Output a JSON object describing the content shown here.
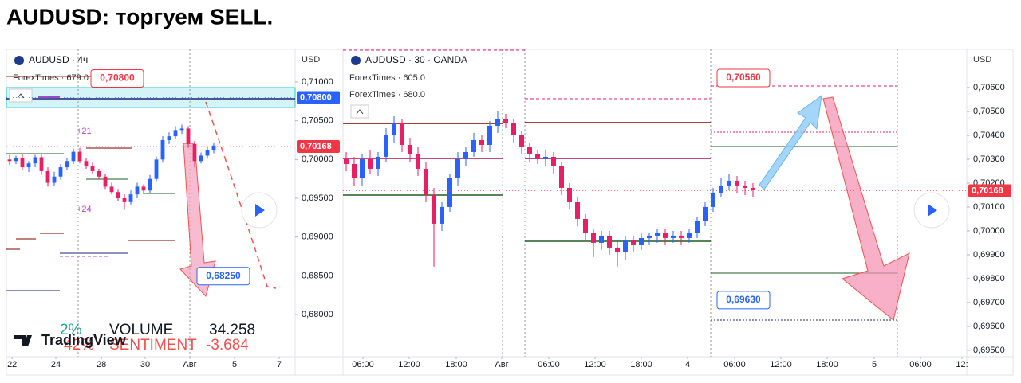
{
  "title": "AUDUSD: торгуем SELL.",
  "chart_data": [
    {
      "type": "candlestick",
      "legend": [
        "AUDUSD · 4ч",
        "ForexTimes · 679.0"
      ],
      "currency": "USD",
      "grid": false,
      "ylim": [
        0.67456,
        0.71421
      ],
      "yticks": [
        {
          "value": 0.71,
          "label": "0,71000"
        },
        {
          "value": 0.705,
          "label": "0,70500"
        },
        {
          "value": 0.7,
          "label": "0,70000"
        },
        {
          "value": 0.695,
          "label": "0,69500"
        },
        {
          "value": 0.69,
          "label": "0,69000"
        },
        {
          "value": 0.685,
          "label": "0,68500"
        },
        {
          "value": 0.68,
          "label": "0,68000"
        }
      ],
      "xlim": [
        -0.5,
        44.75
      ],
      "xticks": [
        {
          "value": 0.4,
          "label": "22"
        },
        {
          "value": 7.25,
          "label": "24"
        },
        {
          "value": 14.4,
          "label": "28"
        },
        {
          "value": 21.25,
          "label": "30"
        },
        {
          "value": 28.25,
          "label": "Авг"
        },
        {
          "value": 35.25,
          "label": "5"
        },
        {
          "value": 42.25,
          "label": "7"
        }
      ],
      "candles": {
        "up_color": "#2962ff",
        "down_color": "#e91e63",
        "open": [
          0.7,
          0.6998,
          0.7002,
          0.699,
          0.6995,
          0.7003,
          0.6985,
          0.697,
          0.6978,
          0.699,
          0.6998,
          0.701,
          0.6998,
          0.6992,
          0.6985,
          0.6978,
          0.6965,
          0.6958,
          0.695,
          0.6945,
          0.6955,
          0.6965,
          0.696,
          0.6975,
          0.7,
          0.7025,
          0.703,
          0.7038,
          0.704,
          0.702,
          0.6998,
          0.7005,
          0.7012
        ],
        "high": [
          0.7006,
          0.7005,
          0.7008,
          0.6998,
          0.7006,
          0.7008,
          0.699,
          0.6984,
          0.6994,
          0.7002,
          0.7014,
          0.7015,
          0.7002,
          0.6996,
          0.6988,
          0.6982,
          0.697,
          0.6962,
          0.6955,
          0.696,
          0.697,
          0.6968,
          0.698,
          0.7004,
          0.703,
          0.7035,
          0.7043,
          0.7045,
          0.7043,
          0.7024,
          0.7009,
          0.7016,
          0.7022
        ],
        "low": [
          0.6993,
          0.6994,
          0.6986,
          0.6984,
          0.699,
          0.698,
          0.6965,
          0.6966,
          0.6974,
          0.6986,
          0.6994,
          0.6995,
          0.6988,
          0.6982,
          0.6974,
          0.6962,
          0.6955,
          0.6946,
          0.6935,
          0.6942,
          0.695,
          0.6955,
          0.6957,
          0.6972,
          0.6996,
          0.702,
          0.7026,
          0.7033,
          0.7015,
          0.699,
          0.6995,
          0.7001,
          0.7008
        ],
        "close": [
          0.6998,
          0.7002,
          0.699,
          0.6995,
          0.7003,
          0.6985,
          0.697,
          0.6978,
          0.699,
          0.6998,
          0.701,
          0.6998,
          0.6992,
          0.6985,
          0.6978,
          0.6965,
          0.6958,
          0.695,
          0.6945,
          0.6955,
          0.6965,
          0.696,
          0.6975,
          0.7,
          0.7025,
          0.703,
          0.7038,
          0.704,
          0.702,
          0.6998,
          0.7005,
          0.7012,
          0.7018
        ]
      },
      "price_labels": [
        {
          "value": 0.708,
          "label": "0,70800",
          "color": "#2962ff"
        },
        {
          "value": 0.70168,
          "label": "0,70168",
          "color": "#f23645"
        }
      ],
      "annotations": [
        {
          "value": 0.708,
          "label": "0,70800",
          "color": "#f23645"
        },
        {
          "value": 0.6825,
          "label": "0,68250",
          "color": "#2962ff"
        }
      ],
      "marks": [
        "+21",
        "+24"
      ],
      "overlay": {
        "volume_pct": "2%",
        "volume": "VOLUME",
        "volume_value": "34.258",
        "sentiment_pct": "42%",
        "sentiment": "SENTIMENT",
        "sentiment_value": "-3.684",
        "brand": "TradingView"
      }
    },
    {
      "type": "candlestick",
      "legend": [
        "AUDUSD · 30 · OANDA",
        "ForexTimes · 605.0",
        "ForexTimes · 680.0"
      ],
      "currency": "USD",
      "grid": false,
      "ylim": [
        0.69473,
        0.7076
      ],
      "yticks": [
        {
          "value": 0.706,
          "label": "0,70600"
        },
        {
          "value": 0.705,
          "label": "0,70500"
        },
        {
          "value": 0.704,
          "label": "0,70400"
        },
        {
          "value": 0.703,
          "label": "0,70300"
        },
        {
          "value": 0.702,
          "label": "0,70200"
        },
        {
          "value": 0.701,
          "label": "0,70100"
        },
        {
          "value": 0.7,
          "label": "0,70000"
        },
        {
          "value": 0.699,
          "label": "0,69900"
        },
        {
          "value": 0.698,
          "label": "0,69800"
        },
        {
          "value": 0.697,
          "label": "0,69700"
        },
        {
          "value": 0.696,
          "label": "0,69600"
        },
        {
          "value": 0.695,
          "label": "0,69500"
        }
      ],
      "xlim": [
        -0.4,
        77.8
      ],
      "xticks": [
        {
          "value": 2.1,
          "label": "06:00"
        },
        {
          "value": 7.9,
          "label": "12:00"
        },
        {
          "value": 13.8,
          "label": "18:00"
        },
        {
          "value": 19.5,
          "label": "Авг"
        },
        {
          "value": 25.4,
          "label": "06:00"
        },
        {
          "value": 31.2,
          "label": "12:00"
        },
        {
          "value": 37,
          "label": "18:00"
        },
        {
          "value": 42.8,
          "label": "4"
        },
        {
          "value": 48.7,
          "label": "06:00"
        },
        {
          "value": 54.5,
          "label": "12:00"
        },
        {
          "value": 60.3,
          "label": "18:00"
        },
        {
          "value": 66.2,
          "label": "5"
        },
        {
          "value": 72,
          "label": "06:00"
        },
        {
          "value": 77.2,
          "label": "12:"
        }
      ],
      "candles": {
        "up_color": "#2962ff",
        "down_color": "#e91e63",
        "open": [
          0.703,
          0.7028,
          0.7022,
          0.703,
          0.7026,
          0.7031,
          0.704,
          0.7045,
          0.7036,
          0.7032,
          0.7026,
          0.7015,
          0.7003,
          0.701,
          0.7022,
          0.703,
          0.7033,
          0.7038,
          0.7036,
          0.7044,
          0.7047,
          0.7045,
          0.704,
          0.7035,
          0.7032,
          0.703,
          0.7031,
          0.7027,
          0.7018,
          0.7012,
          0.7005,
          0.6999,
          0.6995,
          0.6998,
          0.6993,
          0.6991,
          0.6996,
          0.6994,
          0.6997,
          0.6998,
          0.6999,
          0.6997,
          0.6998,
          0.6997,
          0.6999,
          0.7004,
          0.701,
          0.7016,
          0.7019,
          0.7021,
          0.7019,
          0.7018
        ],
        "high": [
          0.7033,
          0.7031,
          0.7032,
          0.7034,
          0.7033,
          0.7043,
          0.7048,
          0.7047,
          0.7039,
          0.7035,
          0.7029,
          0.7018,
          0.7012,
          0.7024,
          0.7033,
          0.7035,
          0.7041,
          0.704,
          0.7046,
          0.705,
          0.7049,
          0.7047,
          0.7042,
          0.7037,
          0.7034,
          0.7034,
          0.7033,
          0.7029,
          0.702,
          0.7014,
          0.7007,
          0.7001,
          0.7,
          0.7,
          0.6996,
          0.6998,
          0.6998,
          0.6999,
          0.6999,
          0.7001,
          0.7001,
          0.7,
          0.7,
          0.7001,
          0.7006,
          0.7012,
          0.7018,
          0.7022,
          0.7024,
          0.7023,
          0.7021,
          0.702
        ],
        "low": [
          0.7025,
          0.7019,
          0.7019,
          0.7024,
          0.7023,
          0.7029,
          0.7037,
          0.7033,
          0.7029,
          0.7023,
          0.7012,
          0.6985,
          0.7,
          0.7008,
          0.7019,
          0.7027,
          0.7031,
          0.7033,
          0.7033,
          0.7041,
          0.7043,
          0.7037,
          0.7032,
          0.7029,
          0.7028,
          0.7027,
          0.7024,
          0.7015,
          0.7009,
          0.7002,
          0.6996,
          0.6989,
          0.6992,
          0.699,
          0.6985,
          0.6988,
          0.6991,
          0.6992,
          0.6994,
          0.6995,
          0.6994,
          0.6995,
          0.6994,
          0.6995,
          0.6997,
          0.7002,
          0.7008,
          0.7014,
          0.7017,
          0.7016,
          0.7015,
          0.7014
        ],
        "close": [
          0.7028,
          0.7022,
          0.703,
          0.7026,
          0.7031,
          0.704,
          0.7045,
          0.7036,
          0.7032,
          0.7026,
          0.7015,
          0.7003,
          0.701,
          0.7022,
          0.703,
          0.7033,
          0.7038,
          0.7036,
          0.7044,
          0.7047,
          0.7045,
          0.704,
          0.7035,
          0.7032,
          0.703,
          0.7031,
          0.7027,
          0.7018,
          0.7012,
          0.7005,
          0.6999,
          0.6995,
          0.6998,
          0.6993,
          0.6991,
          0.6996,
          0.6994,
          0.6997,
          0.6998,
          0.6999,
          0.6997,
          0.6998,
          0.6997,
          0.6999,
          0.7004,
          0.701,
          0.7016,
          0.7019,
          0.7021,
          0.7019,
          0.7018,
          0.7017
        ]
      },
      "price_labels": [
        {
          "value": 0.70168,
          "label": "0,70168",
          "color": "#f23645"
        }
      ],
      "annotations": [
        {
          "value": 0.7056,
          "label": "0,70560",
          "color": "#f23645"
        },
        {
          "value": 0.6963,
          "label": "0,69630",
          "color": "#2962ff"
        }
      ]
    }
  ]
}
